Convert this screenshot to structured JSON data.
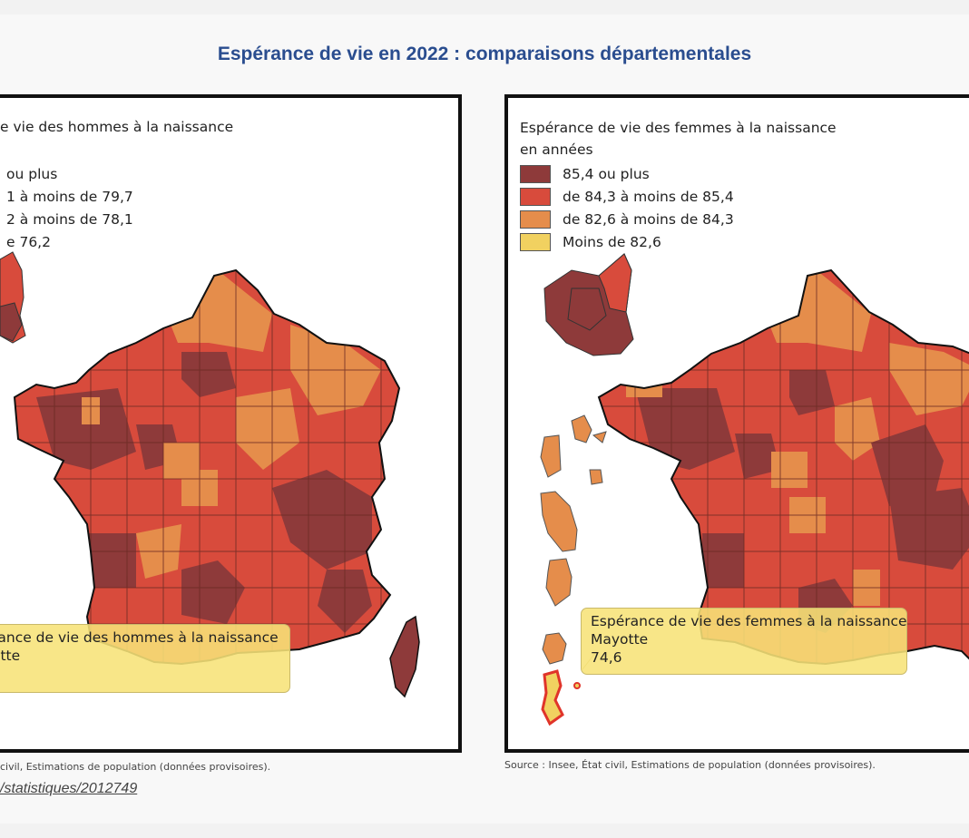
{
  "title": "Espérance de vie en 2022 : comparaisons départementales",
  "colors": {
    "cat1": "#8e3a3a",
    "cat2": "#d84b3c",
    "cat3": "#e58d4b",
    "cat4": "#f1d160",
    "tooltip_bg": "#f6e27c",
    "title": "#2a4d8f"
  },
  "left_map": {
    "legend_title": "e vie des hommes à la naissance",
    "legend_items": [
      {
        "label": "ou plus",
        "color": "#8e3a3a"
      },
      {
        "label": "1 à moins de 79,7",
        "color": "#d84b3c"
      },
      {
        "label": "2 à moins de 78,1",
        "color": "#e58d4b"
      },
      {
        "label": "e 76,2",
        "color": "#f1d160"
      }
    ],
    "tooltip": {
      "line1": "rance de vie des hommes à la naissance",
      "line2": "otte"
    },
    "source": "civil, Estimations de population (données provisoires).",
    "link": "/statistiques/2012749"
  },
  "right_map": {
    "legend_title_line1": "Espérance de vie des femmes à la naissance",
    "legend_title_line2": "en années",
    "legend_items": [
      {
        "label": "85,4 ou plus",
        "color": "#8e3a3a"
      },
      {
        "label": "de 84,3 à moins de 85,4",
        "color": "#d84b3c"
      },
      {
        "label": "de 82,6 à moins de 84,3",
        "color": "#e58d4b"
      },
      {
        "label": "Moins de 82,6",
        "color": "#f1d160"
      }
    ],
    "tooltip": {
      "line1": "Espérance de vie des femmes à la naissance",
      "line2": "Mayotte",
      "line3": "74,6"
    },
    "source": "Source : Insee, État civil, Estimations de population (données provisoires)."
  }
}
